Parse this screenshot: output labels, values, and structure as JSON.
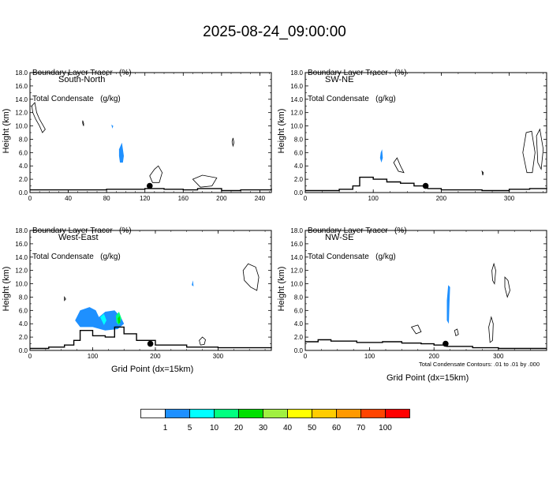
{
  "title": "2025-08-24_09:00:00",
  "colorbar": {
    "labels": [
      "1",
      "5",
      "10",
      "20",
      "30",
      "40",
      "50",
      "60",
      "70",
      "100"
    ],
    "colors": [
      "#ffffff",
      "#1e90ff",
      "#00ffff",
      "#00ff80",
      "#00e000",
      "#a0f040",
      "#ffff00",
      "#ffcc00",
      "#ff9900",
      "#ff4400",
      "#ff0000"
    ]
  },
  "footnote": "Total Condensate Contours: .01 to .01 by .000",
  "chart_data": [
    {
      "type": "heatmap",
      "panel": "South-North",
      "label": "South-North",
      "subtitle_line1": "Boundary Layer Tracer   (%)",
      "subtitle_line2": "Total Condensate   (g/kg)",
      "ylabel": "Height (km)",
      "xlabel": "",
      "xlim": [
        0,
        252
      ],
      "ylim": [
        0,
        18
      ],
      "xticks": [
        "0",
        "40",
        "80",
        "120",
        "160",
        "200",
        "240"
      ],
      "yticks": [
        "0.0",
        "2.0",
        "4.0",
        "6.0",
        "8.0",
        "10.0",
        "12.0",
        "14.0",
        "16.0",
        "18.0"
      ],
      "marker_x": 125,
      "terrain": [
        [
          0,
          0.4
        ],
        [
          40,
          0.4
        ],
        [
          80,
          0.5
        ],
        [
          120,
          0.6
        ],
        [
          140,
          0.5
        ],
        [
          160,
          0.4
        ],
        [
          175,
          0.6
        ],
        [
          200,
          0.3
        ],
        [
          220,
          0.4
        ],
        [
          252,
          0.6
        ]
      ],
      "tracer": [
        {
          "level": "1",
          "points": [
            [
              93,
              6.5
            ],
            [
              96,
              7.5
            ],
            [
              98,
              5.5
            ],
            [
              97,
              4.5
            ],
            [
              94,
              4.5
            ],
            [
              93,
              5.5
            ]
          ]
        },
        {
          "level": "1",
          "points": [
            [
              85,
              10.2
            ],
            [
              87,
              10.0
            ],
            [
              86,
              9.6
            ]
          ]
        }
      ],
      "condensate_contours": [
        [
          [
            2,
            13
          ],
          [
            5,
            13.5
          ],
          [
            7,
            12
          ],
          [
            10,
            11
          ],
          [
            14,
            10
          ],
          [
            16,
            9.5
          ],
          [
            13,
            9
          ],
          [
            10,
            10
          ],
          [
            6,
            11
          ],
          [
            3,
            12
          ]
        ],
        [
          [
            55,
            10.8
          ],
          [
            56,
            10.4
          ],
          [
            56,
            10.0
          ],
          [
            55,
            10.4
          ]
        ],
        [
          [
            212,
            8.2
          ],
          [
            213,
            7.5
          ],
          [
            212,
            7.0
          ],
          [
            211,
            7.6
          ]
        ],
        [
          [
            125,
            2.5
          ],
          [
            130,
            3.5
          ],
          [
            134,
            4.0
          ],
          [
            138,
            3.0
          ],
          [
            135,
            1.5
          ],
          [
            128,
            1.5
          ]
        ],
        [
          [
            170,
            2.0
          ],
          [
            180,
            2.6
          ],
          [
            195,
            2.2
          ],
          [
            190,
            1.0
          ],
          [
            178,
            0.8
          ]
        ]
      ]
    },
    {
      "type": "heatmap",
      "panel": "SW-NE",
      "label": "SW-NE",
      "subtitle_line1": "Boundary Layer Tracer   (%)",
      "subtitle_line2": "Total Condensate   (g/kg)",
      "ylabel": "Height (km)",
      "xlabel": "",
      "xlim": [
        0,
        355
      ],
      "ylim": [
        0,
        18
      ],
      "xticks": [
        "0",
        "100",
        "200",
        "300"
      ],
      "yticks": [
        "0.0",
        "2.0",
        "4.0",
        "6.0",
        "8.0",
        "10.0",
        "12.0",
        "14.0",
        "16.0",
        "18.0"
      ],
      "marker_x": 177,
      "terrain": [
        [
          0,
          0.3
        ],
        [
          50,
          0.5
        ],
        [
          70,
          1.0
        ],
        [
          80,
          2.3
        ],
        [
          100,
          2.0
        ],
        [
          120,
          1.6
        ],
        [
          140,
          1.4
        ],
        [
          160,
          1.0
        ],
        [
          180,
          0.6
        ],
        [
          200,
          0.4
        ],
        [
          260,
          0.3
        ],
        [
          300,
          0.5
        ],
        [
          330,
          0.6
        ],
        [
          355,
          0.7
        ]
      ],
      "tracer": [
        {
          "level": "1",
          "points": [
            [
              111,
              6.0
            ],
            [
              113,
              6.5
            ],
            [
              114,
              5.2
            ],
            [
              112,
              4.5
            ],
            [
              110,
              5.2
            ]
          ]
        }
      ],
      "condensate_contours": [
        [
          [
            130,
            4.5
          ],
          [
            135,
            5.2
          ],
          [
            140,
            4.0
          ],
          [
            145,
            3.0
          ],
          [
            137,
            3.2
          ]
        ],
        [
          [
            320,
            6.0
          ],
          [
            325,
            9.0
          ],
          [
            333,
            9.2
          ],
          [
            338,
            6.0
          ],
          [
            334,
            3.0
          ],
          [
            326,
            3.0
          ]
        ],
        [
          [
            340,
            8.5
          ],
          [
            345,
            9.5
          ],
          [
            350,
            6.5
          ],
          [
            347,
            3.5
          ],
          [
            342,
            4.5
          ]
        ],
        [
          [
            260,
            3.2
          ],
          [
            262,
            3.0
          ],
          [
            261,
            2.6
          ]
        ]
      ]
    },
    {
      "type": "heatmap",
      "panel": "West-East",
      "label": "West-East",
      "subtitle_line1": "Boundary Layer Tracer   (%)",
      "subtitle_line2": "Total Condensate   (g/kg)",
      "ylabel": "Height (km)",
      "xlabel": "Grid Point (dx=15km)",
      "xlim": [
        0,
        385
      ],
      "ylim": [
        0,
        18
      ],
      "xticks": [
        "0",
        "100",
        "200",
        "300"
      ],
      "yticks": [
        "0.0",
        "2.0",
        "4.0",
        "6.0",
        "8.0",
        "10.0",
        "12.0",
        "14.0",
        "16.0",
        "18.0"
      ],
      "marker_x": 192,
      "terrain": [
        [
          0,
          0.3
        ],
        [
          30,
          0.5
        ],
        [
          55,
          0.8
        ],
        [
          70,
          1.5
        ],
        [
          80,
          3.0
        ],
        [
          100,
          2.2
        ],
        [
          120,
          2.0
        ],
        [
          135,
          3.5
        ],
        [
          150,
          2.5
        ],
        [
          170,
          1.5
        ],
        [
          200,
          0.8
        ],
        [
          250,
          0.5
        ],
        [
          300,
          0.4
        ],
        [
          385,
          0.5
        ]
      ],
      "tracer": [
        {
          "level": "1",
          "points": [
            [
              72,
              4.5
            ],
            [
              80,
              6.0
            ],
            [
              95,
              6.5
            ],
            [
              105,
              6.0
            ],
            [
              110,
              5.0
            ],
            [
              120,
              5.8
            ],
            [
              135,
              6.0
            ],
            [
              145,
              5.0
            ],
            [
              150,
              4.0
            ],
            [
              140,
              3.2
            ],
            [
              120,
              3.0
            ],
            [
              100,
              3.5
            ],
            [
              80,
              3.5
            ]
          ]
        },
        {
          "level": "5",
          "points": [
            [
              112,
              5.0
            ],
            [
              118,
              5.5
            ],
            [
              122,
              4.5
            ],
            [
              118,
              3.8
            ]
          ]
        },
        {
          "level": "10",
          "points": [
            [
              137,
              5.2
            ],
            [
              142,
              5.8
            ],
            [
              146,
              4.8
            ],
            [
              142,
              3.8
            ],
            [
              138,
              4.2
            ]
          ]
        },
        {
          "level": "20",
          "points": [
            [
              140,
              4.8
            ],
            [
              143,
              5.2
            ],
            [
              144,
              4.2
            ],
            [
              141,
              4.0
            ]
          ]
        },
        {
          "level": "1",
          "points": [
            [
              258,
              9.8
            ],
            [
              260,
              10.5
            ],
            [
              261,
              9.6
            ]
          ]
        }
      ],
      "condensate_contours": [
        [
          [
            340,
            12.0
          ],
          [
            348,
            13.0
          ],
          [
            360,
            12.5
          ],
          [
            365,
            11.0
          ],
          [
            362,
            9.0
          ],
          [
            352,
            9.5
          ],
          [
            342,
            10.5
          ]
        ],
        [
          [
            55,
            8.0
          ],
          [
            57,
            7.7
          ],
          [
            55,
            7.5
          ]
        ],
        [
          [
            270,
            1.5
          ],
          [
            275,
            2.0
          ],
          [
            280,
            1.6
          ],
          [
            278,
            0.9
          ],
          [
            272,
            0.8
          ]
        ]
      ]
    },
    {
      "type": "heatmap",
      "panel": "NW-SE",
      "label": "NW-SE",
      "subtitle_line1": "Boundary Layer Tracer   (%)",
      "subtitle_line2": "Total Condensate   (g/kg)",
      "ylabel": "Height (km)",
      "xlabel": "Grid Point (dx=15km)",
      "xlim": [
        0,
        375
      ],
      "ylim": [
        0,
        18
      ],
      "xticks": [
        "0",
        "100",
        "200",
        "300"
      ],
      "yticks": [
        "0.0",
        "2.0",
        "4.0",
        "6.0",
        "8.0",
        "10.0",
        "12.0",
        "14.0",
        "16.0",
        "18.0"
      ],
      "marker_x": 218,
      "terrain": [
        [
          0,
          1.3
        ],
        [
          20,
          1.6
        ],
        [
          40,
          1.4
        ],
        [
          80,
          1.2
        ],
        [
          120,
          1.3
        ],
        [
          150,
          1.1
        ],
        [
          180,
          1.0
        ],
        [
          200,
          0.8
        ],
        [
          220,
          0.6
        ],
        [
          260,
          0.4
        ],
        [
          300,
          0.3
        ],
        [
          375,
          0.3
        ]
      ],
      "tracer": [
        {
          "level": "1",
          "points": [
            [
              222,
              9.8
            ],
            [
              225,
              9.5
            ],
            [
              224,
              7.0
            ],
            [
              223,
              4.0
            ],
            [
              220,
              4.5
            ],
            [
              220,
              7.5
            ]
          ]
        }
      ],
      "condensate_contours": [
        [
          [
            290,
            12.0
          ],
          [
            293,
            13.0
          ],
          [
            296,
            12.0
          ],
          [
            294,
            10.0
          ],
          [
            291,
            10.5
          ]
        ],
        [
          [
            310,
            11.0
          ],
          [
            315,
            10.5
          ],
          [
            318,
            9.0
          ],
          [
            314,
            8.0
          ],
          [
            310,
            9.5
          ]
        ],
        [
          [
            285,
            3.5
          ],
          [
            289,
            5.0
          ],
          [
            292,
            4.0
          ],
          [
            291,
            1.5
          ],
          [
            287,
            1.2
          ]
        ],
        [
          [
            165,
            3.5
          ],
          [
            175,
            3.8
          ],
          [
            180,
            2.8
          ],
          [
            172,
            2.5
          ]
        ],
        [
          [
            232,
            3.0
          ],
          [
            236,
            3.2
          ],
          [
            238,
            2.4
          ],
          [
            234,
            2.2
          ]
        ]
      ]
    }
  ]
}
